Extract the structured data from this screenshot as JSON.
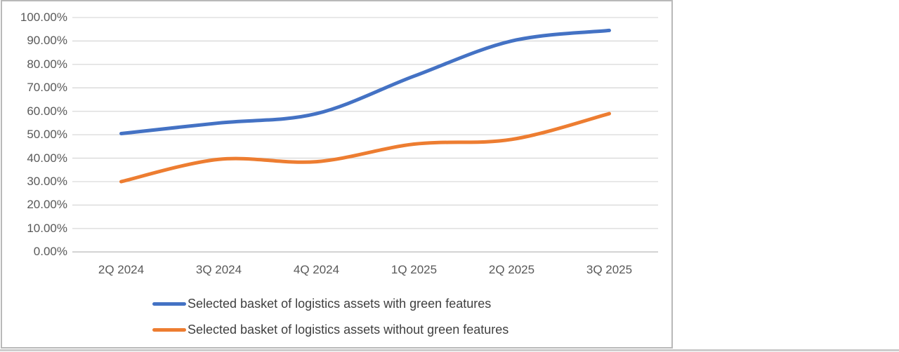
{
  "chart_data": {
    "type": "line",
    "title": "",
    "smoothed": true,
    "grid": "horizontal",
    "legend_position": "bottom-left",
    "categories": [
      "2Q 2024",
      "3Q 2024",
      "4Q 2024",
      "1Q 2025",
      "2Q 2025",
      "3Q 2025"
    ],
    "series": [
      {
        "name": "Selected basket of logistics assets with green features",
        "color": "#4472C4",
        "values": [
          50.5,
          55,
          59,
          75,
          90,
          94.5
        ]
      },
      {
        "name": "Selected basket of logistics assets without green features",
        "color": "#ED7D31",
        "values": [
          30,
          39.5,
          38.5,
          46,
          48,
          59
        ]
      }
    ],
    "ylim": [
      0,
      100
    ],
    "ytick_step": 10,
    "ytick_labels": [
      "100.00%",
      "90.00%",
      "80.00%",
      "70.00%",
      "60.00%",
      "50.00%",
      "40.00%",
      "30.00%",
      "20.00%",
      "10.00%",
      "0.00%"
    ],
    "xlabel": "",
    "ylabel": ""
  },
  "colors": {
    "gridline": "#d9d9d9",
    "axis_line": "#bfbfbf",
    "tick_text": "#595959",
    "legend_text": "#404040",
    "frame_border": "#b9b9b9",
    "bottom_rule": "#cccccc",
    "background": "#ffffff"
  }
}
